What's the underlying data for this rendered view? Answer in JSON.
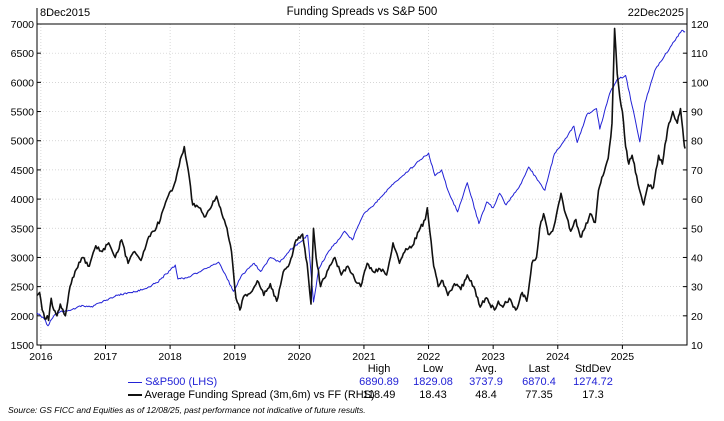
{
  "chart_data": {
    "type": "line",
    "title": "Funding Spreads vs S&P 500",
    "date_start_label": "8Dec2015",
    "date_end_label": "22Dec2025",
    "x_tick_labels": [
      "2016",
      "2017",
      "2018",
      "2019",
      "2020",
      "2021",
      "2022",
      "2023",
      "2024",
      "2025"
    ],
    "x_range": [
      2015.94,
      2026.0
    ],
    "left_axis": {
      "min": 1500,
      "max": 7000,
      "ticks": [
        1500,
        2000,
        2500,
        3000,
        3500,
        4000,
        4500,
        5000,
        5500,
        6000,
        6500,
        7000
      ]
    },
    "right_axis": {
      "min": 10,
      "max": 120,
      "ticks": [
        10,
        20,
        30,
        40,
        50,
        60,
        70,
        80,
        90,
        100,
        110,
        120
      ]
    },
    "series": [
      {
        "name": "S&P500 (LHS)",
        "axis": "left",
        "color": "#2323d6",
        "points": [
          [
            2015.94,
            2050
          ],
          [
            2016.05,
            1950
          ],
          [
            2016.11,
            1829
          ],
          [
            2016.2,
            2000
          ],
          [
            2016.3,
            2070
          ],
          [
            2016.45,
            2090
          ],
          [
            2016.6,
            2170
          ],
          [
            2016.8,
            2150
          ],
          [
            2016.9,
            2220
          ],
          [
            2017.0,
            2260
          ],
          [
            2017.2,
            2360
          ],
          [
            2017.4,
            2400
          ],
          [
            2017.6,
            2460
          ],
          [
            2017.8,
            2570
          ],
          [
            2018.0,
            2780
          ],
          [
            2018.08,
            2870
          ],
          [
            2018.12,
            2630
          ],
          [
            2018.25,
            2650
          ],
          [
            2018.45,
            2750
          ],
          [
            2018.6,
            2830
          ],
          [
            2018.75,
            2920
          ],
          [
            2018.85,
            2720
          ],
          [
            2018.98,
            2420
          ],
          [
            2019.1,
            2680
          ],
          [
            2019.3,
            2900
          ],
          [
            2019.4,
            2760
          ],
          [
            2019.55,
            3000
          ],
          [
            2019.7,
            2920
          ],
          [
            2019.85,
            3120
          ],
          [
            2020.0,
            3250
          ],
          [
            2020.13,
            3380
          ],
          [
            2020.22,
            2237
          ],
          [
            2020.3,
            2800
          ],
          [
            2020.45,
            3100
          ],
          [
            2020.6,
            3300
          ],
          [
            2020.7,
            3450
          ],
          [
            2020.82,
            3300
          ],
          [
            2021.0,
            3750
          ],
          [
            2021.2,
            3950
          ],
          [
            2021.4,
            4200
          ],
          [
            2021.6,
            4400
          ],
          [
            2021.8,
            4600
          ],
          [
            2022.0,
            4790
          ],
          [
            2022.1,
            4400
          ],
          [
            2022.2,
            4500
          ],
          [
            2022.3,
            4150
          ],
          [
            2022.45,
            3780
          ],
          [
            2022.6,
            4280
          ],
          [
            2022.78,
            3580
          ],
          [
            2022.9,
            3950
          ],
          [
            2023.0,
            3850
          ],
          [
            2023.1,
            4100
          ],
          [
            2023.2,
            3900
          ],
          [
            2023.4,
            4200
          ],
          [
            2023.55,
            4550
          ],
          [
            2023.8,
            4150
          ],
          [
            2023.95,
            4780
          ],
          [
            2024.1,
            5000
          ],
          [
            2024.25,
            5250
          ],
          [
            2024.3,
            4970
          ],
          [
            2024.45,
            5450
          ],
          [
            2024.6,
            5550
          ],
          [
            2024.65,
            5200
          ],
          [
            2024.8,
            5800
          ],
          [
            2024.92,
            6050
          ],
          [
            2025.05,
            6120
          ],
          [
            2025.15,
            5600
          ],
          [
            2025.27,
            4980
          ],
          [
            2025.35,
            5650
          ],
          [
            2025.5,
            6200
          ],
          [
            2025.65,
            6450
          ],
          [
            2025.8,
            6700
          ],
          [
            2025.92,
            6890
          ],
          [
            2025.97,
            6870
          ]
        ]
      },
      {
        "name": "Average Funding Spread (3m,6m) vs FF (RHS)",
        "axis": "right",
        "color": "#111111",
        "points": [
          [
            2015.94,
            27
          ],
          [
            2015.98,
            28
          ],
          [
            2016.02,
            22
          ],
          [
            2016.06,
            19
          ],
          [
            2016.1,
            20
          ],
          [
            2016.12,
            18.43
          ],
          [
            2016.16,
            26
          ],
          [
            2016.2,
            22
          ],
          [
            2016.25,
            20
          ],
          [
            2016.3,
            24
          ],
          [
            2016.38,
            20
          ],
          [
            2016.45,
            30
          ],
          [
            2016.55,
            36
          ],
          [
            2016.65,
            40
          ],
          [
            2016.75,
            37
          ],
          [
            2016.85,
            44
          ],
          [
            2016.95,
            42
          ],
          [
            2017.05,
            45
          ],
          [
            2017.15,
            40
          ],
          [
            2017.25,
            46
          ],
          [
            2017.35,
            38
          ],
          [
            2017.45,
            42
          ],
          [
            2017.55,
            39
          ],
          [
            2017.65,
            46
          ],
          [
            2017.75,
            49
          ],
          [
            2017.85,
            53
          ],
          [
            2017.95,
            60
          ],
          [
            2018.05,
            64
          ],
          [
            2018.12,
            70
          ],
          [
            2018.18,
            75
          ],
          [
            2018.22,
            78
          ],
          [
            2018.28,
            70
          ],
          [
            2018.35,
            58
          ],
          [
            2018.45,
            57
          ],
          [
            2018.55,
            54
          ],
          [
            2018.65,
            58
          ],
          [
            2018.72,
            61
          ],
          [
            2018.8,
            55
          ],
          [
            2018.88,
            50
          ],
          [
            2018.95,
            42
          ],
          [
            2019.02,
            26
          ],
          [
            2019.08,
            22
          ],
          [
            2019.15,
            27
          ],
          [
            2019.25,
            28
          ],
          [
            2019.35,
            32
          ],
          [
            2019.45,
            27
          ],
          [
            2019.55,
            31
          ],
          [
            2019.65,
            25
          ],
          [
            2019.75,
            35
          ],
          [
            2019.85,
            38
          ],
          [
            2019.95,
            46
          ],
          [
            2020.05,
            48
          ],
          [
            2020.12,
            38
          ],
          [
            2020.18,
            24
          ],
          [
            2020.22,
            50
          ],
          [
            2020.26,
            40
          ],
          [
            2020.33,
            30
          ],
          [
            2020.45,
            36
          ],
          [
            2020.55,
            40
          ],
          [
            2020.65,
            34
          ],
          [
            2020.75,
            37
          ],
          [
            2020.85,
            33
          ],
          [
            2020.95,
            30
          ],
          [
            2021.05,
            38
          ],
          [
            2021.15,
            35
          ],
          [
            2021.25,
            36
          ],
          [
            2021.35,
            34
          ],
          [
            2021.45,
            45
          ],
          [
            2021.55,
            38
          ],
          [
            2021.65,
            43
          ],
          [
            2021.75,
            44
          ],
          [
            2021.85,
            49
          ],
          [
            2021.95,
            53
          ],
          [
            2021.98,
            57
          ],
          [
            2022.02,
            49
          ],
          [
            2022.08,
            37
          ],
          [
            2022.15,
            30
          ],
          [
            2022.22,
            32
          ],
          [
            2022.3,
            27
          ],
          [
            2022.4,
            31
          ],
          [
            2022.5,
            29
          ],
          [
            2022.6,
            34
          ],
          [
            2022.7,
            30
          ],
          [
            2022.8,
            23
          ],
          [
            2022.88,
            26
          ],
          [
            2022.95,
            24
          ],
          [
            2023.02,
            22
          ],
          [
            2023.08,
            25
          ],
          [
            2023.15,
            23
          ],
          [
            2023.25,
            26
          ],
          [
            2023.35,
            22
          ],
          [
            2023.45,
            28
          ],
          [
            2023.52,
            25
          ],
          [
            2023.6,
            38
          ],
          [
            2023.67,
            40
          ],
          [
            2023.72,
            50
          ],
          [
            2023.78,
            55
          ],
          [
            2023.85,
            48
          ],
          [
            2023.92,
            49
          ],
          [
            2024.0,
            57
          ],
          [
            2024.05,
            62
          ],
          [
            2024.12,
            55
          ],
          [
            2024.2,
            49
          ],
          [
            2024.28,
            53
          ],
          [
            2024.35,
            47
          ],
          [
            2024.42,
            50
          ],
          [
            2024.5,
            55
          ],
          [
            2024.58,
            52
          ],
          [
            2024.63,
            63
          ],
          [
            2024.7,
            68
          ],
          [
            2024.78,
            74
          ],
          [
            2024.84,
            86
          ],
          [
            2024.88,
            118.49
          ],
          [
            2024.92,
            103
          ],
          [
            2024.96,
            95
          ],
          [
            2025.0,
            90
          ],
          [
            2025.05,
            78
          ],
          [
            2025.1,
            72
          ],
          [
            2025.15,
            75
          ],
          [
            2025.22,
            68
          ],
          [
            2025.28,
            62
          ],
          [
            2025.33,
            58
          ],
          [
            2025.4,
            65
          ],
          [
            2025.48,
            64
          ],
          [
            2025.56,
            75
          ],
          [
            2025.62,
            72
          ],
          [
            2025.7,
            84
          ],
          [
            2025.78,
            90
          ],
          [
            2025.85,
            86
          ],
          [
            2025.9,
            91
          ],
          [
            2025.95,
            80
          ],
          [
            2025.97,
            77.35
          ]
        ]
      }
    ]
  },
  "stats": {
    "headers": [
      "High",
      "Low",
      "Avg.",
      "Last",
      "StdDev"
    ],
    "rows": [
      {
        "label": "S&P500 (LHS)",
        "color": "#2323d6",
        "values": [
          "6890.89",
          "1829.08",
          "3737.9",
          "6870.4",
          "1274.72"
        ]
      },
      {
        "label": "Average Funding Spread (3m,6m) vs FF (RHS)",
        "color": "#111111",
        "values": [
          "118.49",
          "18.43",
          "48.4",
          "77.35",
          "17.3"
        ]
      }
    ]
  },
  "source_note": "Source: GS FICC and Equities as of 12/08/25, past performance not indicative of future results."
}
